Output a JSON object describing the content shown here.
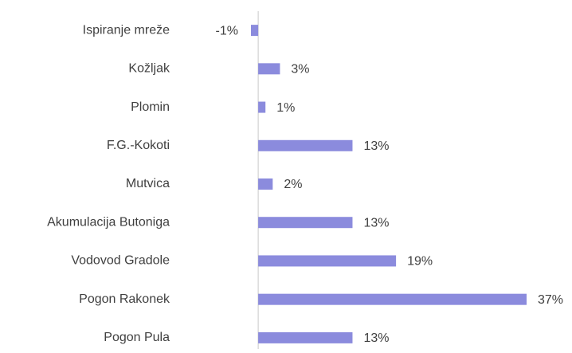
{
  "chart_data": {
    "type": "bar",
    "orientation": "horizontal",
    "categories": [
      "Ispiranje mreže",
      "Kožljak",
      "Plomin",
      "F.G.-Kokoti",
      "Mutvica",
      "Akumulacija Butoniga",
      "Vodovod Gradole",
      "Pogon Rakonek",
      "Pogon Pula"
    ],
    "values": [
      -1,
      3,
      1,
      13,
      2,
      13,
      19,
      37,
      13
    ],
    "value_labels": [
      "-1%",
      "3%",
      "1%",
      "13%",
      "2%",
      "13%",
      "19%",
      "37%",
      "13%"
    ],
    "color": "#8b8bdd",
    "xlim": [
      -1,
      37
    ]
  }
}
